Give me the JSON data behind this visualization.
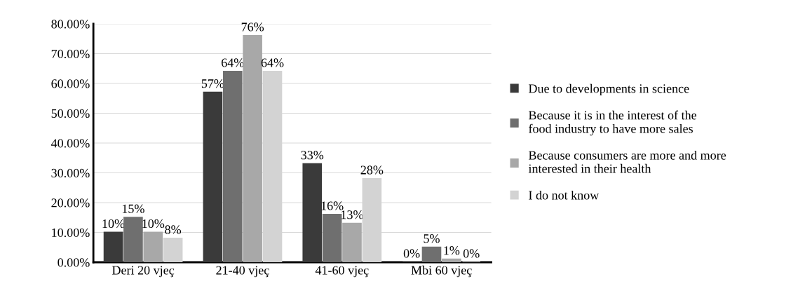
{
  "chart_data": {
    "type": "bar",
    "categories": [
      "Deri 20 vjeç",
      "21-40 vjeç",
      "41-60 vjeç",
      "Mbi 60 vjeç"
    ],
    "series": [
      {
        "name": "Due to developments in science",
        "color": "#3a3a3a",
        "values": [
          10,
          57,
          33,
          0
        ],
        "value_labels": [
          "10%",
          "57%",
          "33%",
          "0%"
        ]
      },
      {
        "name": "Because it is in the interest of the food industry to have more sales",
        "color": "#6f6f6f",
        "values": [
          15,
          64,
          16,
          5
        ],
        "value_labels": [
          "15%",
          "64%",
          "16%",
          "5%"
        ]
      },
      {
        "name": "Because consumers are more and more interested in their health",
        "color": "#a8a8a8",
        "values": [
          10,
          76,
          13,
          1
        ],
        "value_labels": [
          "10%",
          "76%",
          "13%",
          "1%"
        ]
      },
      {
        "name": "I do not know",
        "color": "#d3d3d3",
        "values": [
          8,
          64,
          28,
          0
        ],
        "value_labels": [
          "8%",
          "64%",
          "28%",
          "0%"
        ]
      }
    ],
    "ylim": [
      0,
      80
    ],
    "yticks": [
      {
        "value": 0,
        "label": "0.00%"
      },
      {
        "value": 10,
        "label": "10.00%"
      },
      {
        "value": 20,
        "label": "20.00%"
      },
      {
        "value": 30,
        "label": "30.00%"
      },
      {
        "value": 40,
        "label": "40.00%"
      },
      {
        "value": 50,
        "label": "50.00%"
      },
      {
        "value": 60,
        "label": "60.00%"
      },
      {
        "value": 70,
        "label": "70.00%"
      },
      {
        "value": 80,
        "label": "80.00%"
      }
    ],
    "grid": "y",
    "legend": "right"
  }
}
